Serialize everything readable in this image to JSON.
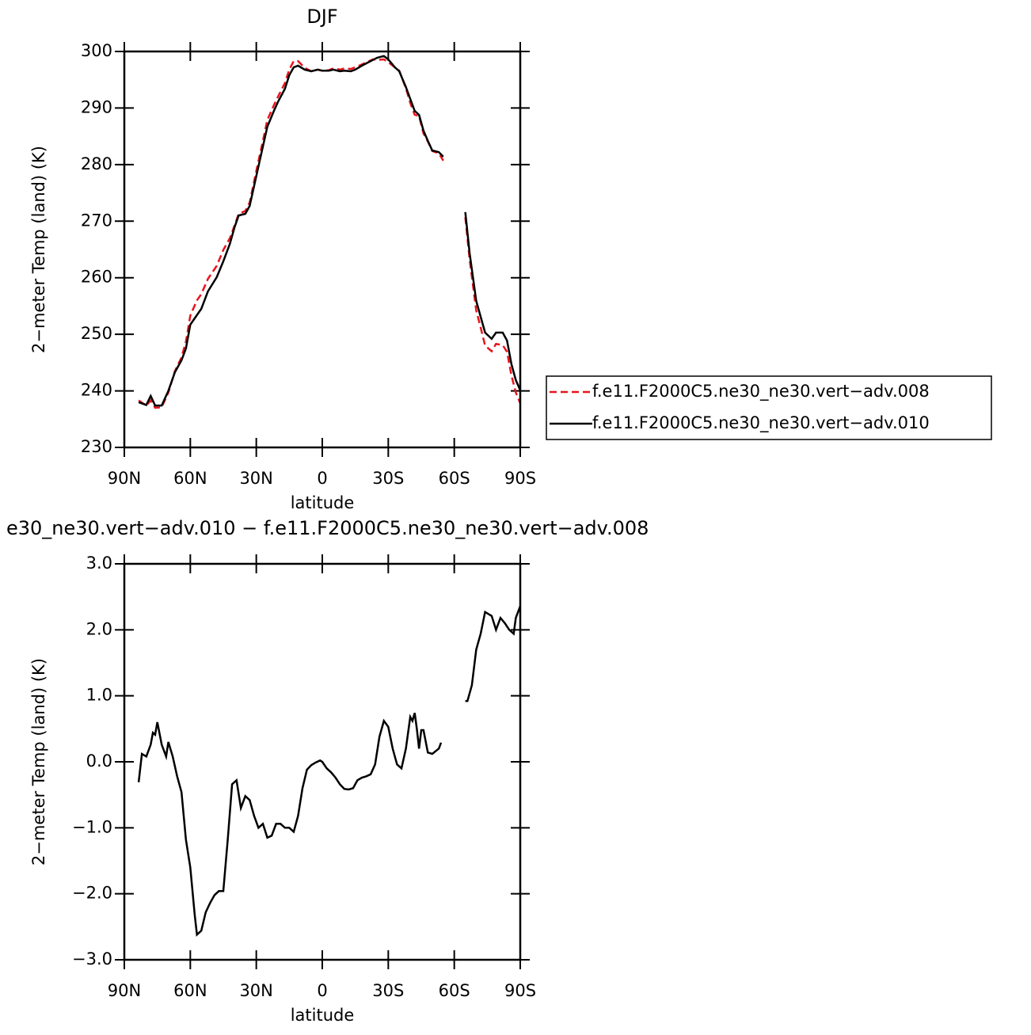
{
  "chart_data": [
    {
      "type": "line",
      "title": "DJF",
      "x_label": "latitude",
      "y_label": "2−meter Temp (land) (K)",
      "xlim": [
        90,
        -90
      ],
      "ylim": [
        230,
        300
      ],
      "xticks": [
        {
          "value": 90,
          "label": "90N"
        },
        {
          "value": 60,
          "label": "60N"
        },
        {
          "value": 30,
          "label": "30N"
        },
        0,
        {
          "value": -30,
          "label": "30S"
        },
        {
          "value": -60,
          "label": "60S"
        },
        {
          "value": -90,
          "label": "90S"
        }
      ],
      "yticks": [
        230,
        240,
        250,
        260,
        270,
        280,
        290,
        300
      ],
      "legend": "right",
      "x": [
        83.5,
        80,
        78,
        76,
        73,
        70,
        67,
        64,
        62,
        60,
        57,
        55,
        52,
        48,
        45,
        42,
        40,
        38,
        35,
        33,
        30,
        27,
        25,
        22,
        20,
        17,
        15,
        13,
        11,
        8,
        5,
        2,
        0,
        -3,
        -5,
        -8,
        -10,
        -13,
        -15,
        -18,
        -20,
        -23,
        -25,
        -28,
        -30,
        -33,
        -35,
        -38,
        -40,
        -42,
        -44,
        -46,
        -48,
        -50,
        -53,
        -55,
        -60,
        -65,
        -67,
        -70,
        -72,
        -74,
        -77,
        -79,
        -82,
        -84,
        -86,
        -88,
        -90
      ],
      "series": [
        {
          "name": "f.e11.F2000C5.ne30_ne30.vert−adv.008",
          "color": "#e8141c",
          "linestyle": "dashed",
          "values": [
            238.3,
            237.4,
            238.3,
            237.0,
            237.1,
            239.7,
            243.5,
            245.9,
            248.7,
            253.3,
            256.0,
            257.1,
            259.8,
            262.1,
            264.9,
            267.0,
            269.1,
            271.3,
            271.8,
            273.3,
            278.9,
            284.2,
            287.9,
            290.5,
            292.1,
            294.4,
            296.8,
            298.3,
            298.3,
            297.1,
            296.5,
            296.8,
            296.6,
            296.7,
            297.0,
            296.8,
            297.0,
            296.9,
            297.2,
            297.7,
            298.1,
            298.6,
            298.5,
            298.6,
            298.1,
            297.2,
            296.6,
            293.5,
            290.9,
            288.8,
            288.6,
            285.5,
            284.1,
            282.4,
            282.0,
            280.7,
            null,
            270.7,
            263.2,
            254.2,
            251.2,
            248.0,
            247.0,
            248.3,
            248.1,
            246.9,
            242.7,
            239.7,
            237.8
          ]
        },
        {
          "name": "f.e11.F2000C5.ne30_ne30.vert−adv.010",
          "color": "#000000",
          "linestyle": "solid",
          "values": [
            238.0,
            237.5,
            239.1,
            237.4,
            237.4,
            240.0,
            243.3,
            245.4,
            247.5,
            251.7,
            253.4,
            254.5,
            257.6,
            260.1,
            262.9,
            266.0,
            268.8,
            271.0,
            271.3,
            272.7,
            278.0,
            283.2,
            286.7,
            289.5,
            291.2,
            293.4,
            295.8,
            297.2,
            297.5,
            296.8,
            296.5,
            296.8,
            296.6,
            296.6,
            296.8,
            296.5,
            296.6,
            296.5,
            296.8,
            297.5,
            297.9,
            298.5,
            298.9,
            299.2,
            298.6,
            297.2,
            296.5,
            293.7,
            291.6,
            289.5,
            288.8,
            286.0,
            284.2,
            282.5,
            282.2,
            281.4,
            null,
            271.6,
            264.3,
            255.9,
            253.1,
            250.3,
            249.2,
            250.3,
            250.3,
            248.9,
            244.7,
            241.9,
            240.1
          ]
        }
      ]
    },
    {
      "type": "line",
      "title": "e30_ne30.vert−adv.010 − f.e11.F2000C5.ne30_ne30.vert−adv.008",
      "x_label": "latitude",
      "y_label": "2−meter Temp (land) (K)",
      "xlim": [
        90,
        -90
      ],
      "ylim": [
        -3,
        3
      ],
      "xticks": [
        {
          "value": 90,
          "label": "90N"
        },
        {
          "value": 60,
          "label": "60N"
        },
        {
          "value": 30,
          "label": "30N"
        },
        0,
        {
          "value": -30,
          "label": "30S"
        },
        {
          "value": -60,
          "label": "60S"
        },
        {
          "value": -90,
          "label": "90S"
        }
      ],
      "yticks": [
        {
          "value": 3,
          "label": "3.0"
        },
        {
          "value": 2,
          "label": "2.0"
        },
        {
          "value": 1,
          "label": "1.0"
        },
        {
          "value": 0,
          "label": "0.0"
        },
        {
          "value": -1,
          "label": "−1.0"
        },
        {
          "value": -2,
          "label": "−2.0"
        },
        {
          "value": -3,
          "label": "−3.0"
        }
      ],
      "x": [
        83.5,
        82,
        80,
        78,
        77,
        76,
        75,
        73,
        71,
        70,
        68,
        66,
        64,
        62,
        60,
        58,
        57,
        55,
        53,
        51,
        49,
        47,
        45,
        43,
        41,
        39,
        37,
        35,
        33,
        31,
        29,
        27,
        25,
        23,
        21,
        19,
        17,
        15,
        13,
        11,
        9,
        7,
        5,
        3,
        1,
        0,
        -2,
        -4,
        -6,
        -8,
        -10,
        -12,
        -14,
        -16,
        -18,
        -20,
        -22,
        -24,
        -26,
        -28,
        -30,
        -32,
        -34,
        -36,
        -38,
        -40,
        -41,
        -42,
        -43,
        -44,
        -45,
        -46,
        -48,
        -50,
        -53,
        -54,
        -60,
        -65,
        -66,
        -68,
        -70,
        -72,
        -74,
        -77,
        -79,
        -81,
        -83,
        -85,
        -87,
        -88,
        -90
      ],
      "series": [
        {
          "color": "#000000",
          "linestyle": "solid",
          "values": [
            -0.31,
            0.12,
            0.08,
            0.26,
            0.44,
            0.41,
            0.6,
            0.26,
            0.08,
            0.3,
            0.08,
            -0.22,
            -0.46,
            -1.18,
            -1.6,
            -2.32,
            -2.62,
            -2.56,
            -2.28,
            -2.14,
            -2.02,
            -1.96,
            -1.96,
            -1.18,
            -0.34,
            -0.28,
            -0.7,
            -0.52,
            -0.58,
            -0.82,
            -1.0,
            -0.94,
            -1.15,
            -1.12,
            -0.94,
            -0.94,
            -1.0,
            -1.0,
            -1.06,
            -0.82,
            -0.4,
            -0.12,
            -0.05,
            -0.01,
            0.02,
            0,
            -0.1,
            -0.16,
            -0.24,
            -0.34,
            -0.41,
            -0.42,
            -0.4,
            -0.28,
            -0.24,
            -0.22,
            -0.19,
            -0.04,
            0.38,
            0.62,
            0.53,
            0.2,
            -0.04,
            -0.1,
            0.2,
            0.68,
            0.62,
            0.74,
            0.5,
            0.2,
            0.48,
            0.48,
            0.14,
            0.12,
            0.2,
            0.29,
            null,
            0.92,
            0.92,
            1.16,
            1.7,
            1.94,
            2.27,
            2.21,
            2.0,
            2.18,
            2.1,
            2.0,
            1.94,
            2.18,
            2.36
          ]
        }
      ]
    }
  ]
}
